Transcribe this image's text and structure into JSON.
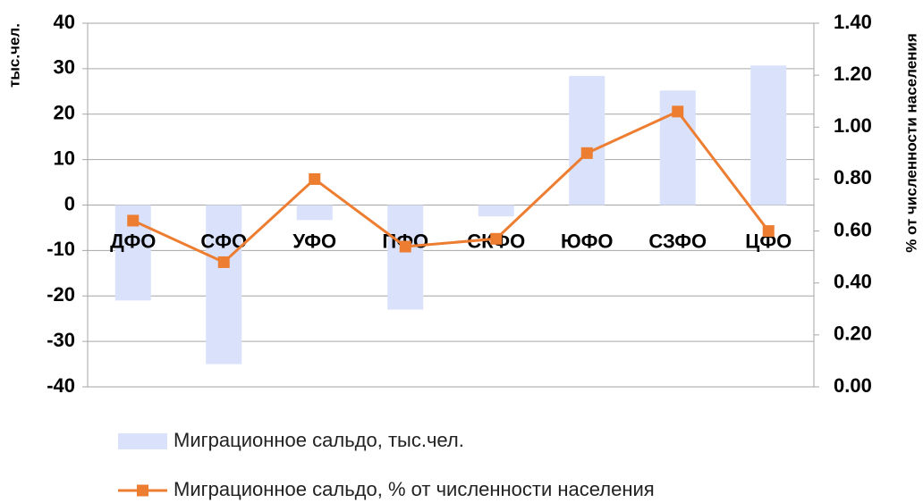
{
  "chart_data": {
    "type": "bar_line",
    "categories": [
      "ДФО",
      "СФО",
      "УФО",
      "ПФО",
      "СКФО",
      "ЮФО",
      "СЗФО",
      "ЦФО"
    ],
    "series": [
      {
        "name": "Миграционное сальдо, тыс.чел.",
        "color": "#d9e1fb",
        "type": "bar",
        "axis": "y",
        "values": [
          -21,
          -35,
          -3.3,
          -23,
          -2.5,
          28.4,
          25.2,
          30.7
        ]
      },
      {
        "name": "Миграционное сальдо, % от численности населения",
        "color": "#ed7d31",
        "type": "line",
        "axis": "y2",
        "values": [
          0.64,
          0.48,
          0.8,
          0.54,
          0.57,
          0.9,
          1.06,
          0.6
        ]
      }
    ],
    "ylabel": "тыс.чел.",
    "y2label": "% от численности населения",
    "ylim": [
      -40,
      40
    ],
    "yticks": [
      -40,
      -30,
      -20,
      -10,
      0,
      10,
      20,
      30,
      40
    ],
    "y2lim": [
      0,
      1.4
    ],
    "y2ticks": [
      {
        "value": 0,
        "label": "0.00"
      },
      {
        "value": 0.2,
        "label": "0.20"
      },
      {
        "value": 0.4,
        "label": "0.40"
      },
      {
        "value": 0.6,
        "label": "0.60"
      },
      {
        "value": 0.8,
        "label": "0.80"
      },
      {
        "value": 1,
        "label": "1.00"
      },
      {
        "value": 1.2,
        "label": "1.20"
      },
      {
        "value": 1.4,
        "label": "1.40"
      }
    ],
    "grid": true,
    "legend": "bottom"
  }
}
